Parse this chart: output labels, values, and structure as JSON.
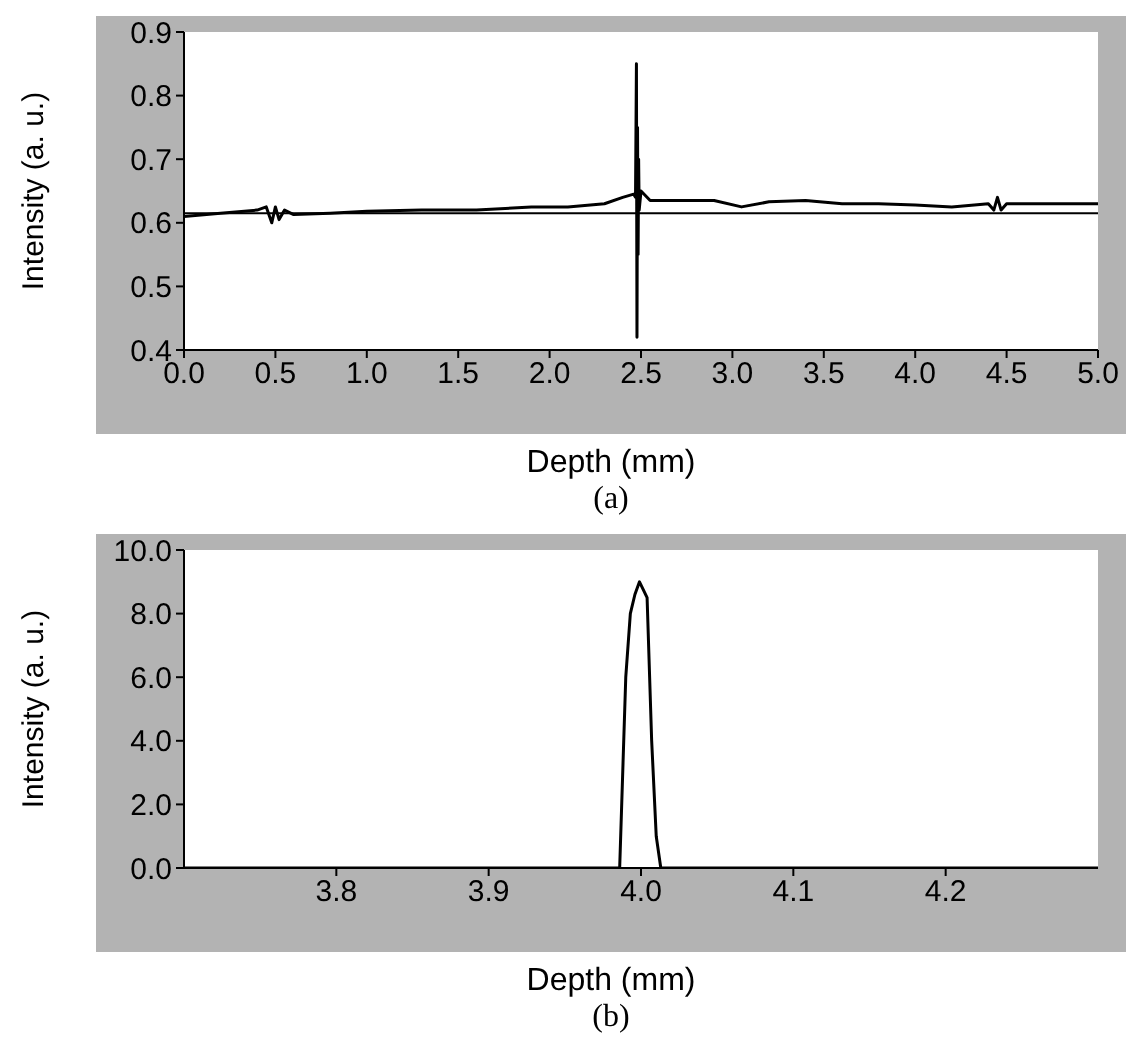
{
  "chart_data": [
    {
      "type": "line",
      "title": "(a)",
      "xlabel": "Depth (mm)",
      "ylabel": "Intensity (a. u.)",
      "xlim": [
        0,
        5
      ],
      "ylim": [
        0.4,
        0.9
      ],
      "xticks": [
        {
          "value": 0,
          "label": "0.0"
        },
        0.5,
        {
          "value": 1,
          "label": "1.0"
        },
        1.5,
        {
          "value": 2,
          "label": "2.0"
        },
        2.5,
        {
          "value": 3,
          "label": "3.0"
        },
        3.5,
        {
          "value": 4,
          "label": "4.0"
        },
        4.5,
        {
          "value": 5,
          "label": "5.0"
        }
      ],
      "yticks": [
        0.4,
        0.5,
        0.6,
        0.7,
        0.8,
        0.9
      ],
      "marker": "none",
      "line_style": "solid",
      "ref_lines": [
        {
          "axis": "y",
          "value": 0.615,
          "color": "#000000"
        }
      ],
      "series": [
        {
          "color": "#000000",
          "x": [
            0,
            0.2,
            0.4,
            0.45,
            0.48,
            0.5,
            0.52,
            0.55,
            0.6,
            0.8,
            1.0,
            1.3,
            1.6,
            1.9,
            2.1,
            2.3,
            2.4,
            2.46,
            2.47,
            2.475,
            2.478,
            2.481,
            2.484,
            2.487,
            2.49,
            2.5,
            2.55,
            2.7,
            2.9,
            3.05,
            3.2,
            3.4,
            3.6,
            3.8,
            4.0,
            4.2,
            4.4,
            4.43,
            4.45,
            4.47,
            4.5,
            4.7,
            5.0
          ],
          "values": [
            0.61,
            0.615,
            0.62,
            0.625,
            0.6,
            0.625,
            0.605,
            0.62,
            0.613,
            0.615,
            0.618,
            0.62,
            0.62,
            0.625,
            0.625,
            0.63,
            0.64,
            0.645,
            0.64,
            0.85,
            0.42,
            0.75,
            0.55,
            0.7,
            0.62,
            0.65,
            0.635,
            0.635,
            0.635,
            0.625,
            0.633,
            0.635,
            0.63,
            0.63,
            0.628,
            0.625,
            0.63,
            0.62,
            0.64,
            0.62,
            0.63,
            0.63,
            0.63
          ]
        }
      ]
    },
    {
      "type": "line",
      "title": "(b)",
      "xlabel": "Depth (mm)",
      "ylabel": "Intensity (a. u.)",
      "xlim": [
        3.7,
        4.3
      ],
      "ylim": [
        0,
        10
      ],
      "xticks": [
        3.8,
        3.9,
        {
          "value": 4,
          "label": "4.0"
        },
        4.1,
        4.2
      ],
      "yticks": [
        {
          "value": 0,
          "label": "0.0"
        },
        {
          "value": 2,
          "label": "2.0"
        },
        {
          "value": 4,
          "label": "4.0"
        },
        {
          "value": 6,
          "label": "6.0"
        },
        {
          "value": 8,
          "label": "8.0"
        },
        {
          "value": 10,
          "label": "10.0"
        }
      ],
      "marker": "none",
      "line_style": "solid",
      "series": [
        {
          "color": "#000000",
          "x": [
            3.7,
            3.986,
            3.99,
            3.993,
            3.996,
            3.999,
            4.001,
            4.004,
            4.007,
            4.01,
            4.013,
            4.3
          ],
          "values": [
            0,
            0,
            6,
            8,
            8.6,
            9,
            8.8,
            8.5,
            4,
            1,
            0,
            0
          ]
        }
      ]
    }
  ]
}
